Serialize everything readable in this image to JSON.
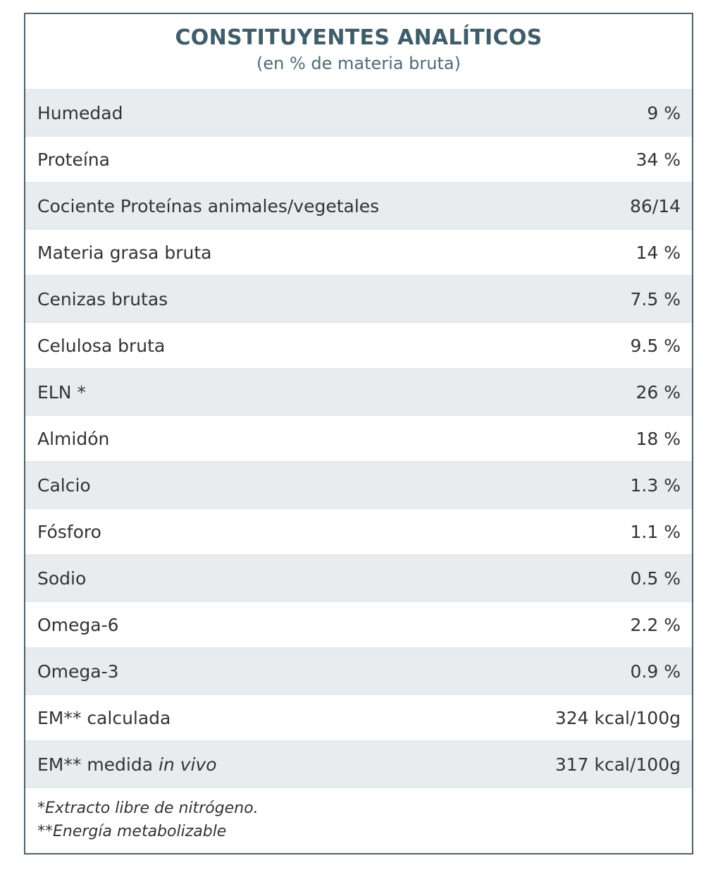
{
  "header": {
    "title": "CONSTITUYENTES ANALÍTICOS",
    "subtitle": "(en % de materia bruta)"
  },
  "rows": [
    {
      "label": "Humedad",
      "value": "9 %"
    },
    {
      "label": "Proteína",
      "value": "34 %"
    },
    {
      "label": "Cociente Proteínas animales/vegetales",
      "value": "86/14"
    },
    {
      "label": "Materia grasa bruta",
      "value": "14 %"
    },
    {
      "label": "Cenizas brutas",
      "value": "7.5 %"
    },
    {
      "label": "Celulosa bruta",
      "value": "9.5 %"
    },
    {
      "label": "ELN *",
      "value": "26 %"
    },
    {
      "label": "Almidón",
      "value": "18 %"
    },
    {
      "label": "Calcio",
      "value": "1.3 %"
    },
    {
      "label": "Fósforo",
      "value": "1.1 %"
    },
    {
      "label": "Sodio",
      "value": "0.5 %"
    },
    {
      "label": "Omega-6",
      "value": "2.2 %"
    },
    {
      "label": "Omega-3",
      "value": "0.9 %"
    },
    {
      "label": "EM** calculada",
      "value": "324 kcal/100g"
    },
    {
      "label": "EM** medida ",
      "label_italic": "in vivo",
      "value": "317 kcal/100g"
    }
  ],
  "footnotes": [
    "*Extracto libre de nitrógeno.",
    "**Energía metabolizable"
  ]
}
